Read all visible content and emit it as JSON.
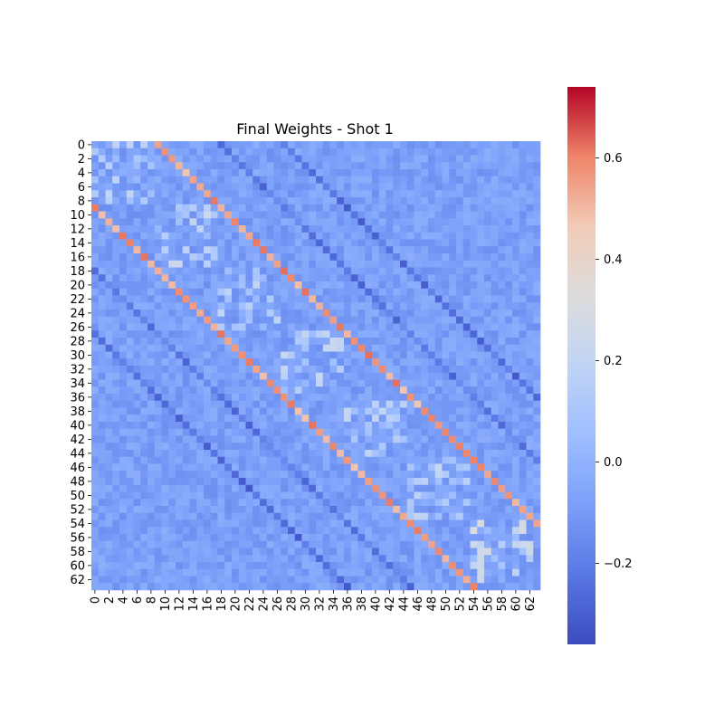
{
  "chart_data": {
    "type": "heatmap",
    "title": "Final Weights - Shot 1",
    "xlabel": "",
    "ylabel": "",
    "n": 64,
    "x_tick_labels": [
      "0",
      "2",
      "4",
      "6",
      "8",
      "10",
      "12",
      "14",
      "16",
      "18",
      "20",
      "22",
      "24",
      "26",
      "28",
      "30",
      "32",
      "34",
      "36",
      "38",
      "40",
      "42",
      "44",
      "46",
      "48",
      "50",
      "52",
      "54",
      "56",
      "58",
      "60",
      "62"
    ],
    "y_tick_labels": [
      "0",
      "2",
      "4",
      "6",
      "8",
      "10",
      "12",
      "14",
      "16",
      "18",
      "20",
      "22",
      "24",
      "26",
      "28",
      "30",
      "32",
      "34",
      "36",
      "38",
      "40",
      "42",
      "44",
      "46",
      "48",
      "50",
      "52",
      "54",
      "56",
      "58",
      "60",
      "62"
    ],
    "colorbar": {
      "colormap": "coolwarm",
      "vmin": -0.36,
      "vmax": 0.74,
      "tick_labels": [
        "0.6",
        "0.4",
        "0.2",
        "0.0",
        "−0.2"
      ],
      "tick_values": [
        0.6,
        0.4,
        0.2,
        0.0,
        -0.2
      ]
    },
    "pattern": {
      "baseline": -0.08,
      "offdiag_bands": [
        {
          "offset": 9,
          "value": 0.55
        },
        {
          "offset": -9,
          "value": 0.55
        },
        {
          "offset": 18,
          "value": -0.22
        },
        {
          "offset": -18,
          "value": -0.22
        },
        {
          "offset": 27,
          "value": -0.25
        },
        {
          "offset": -27,
          "value": -0.25
        }
      ],
      "diag_blocks": [
        {
          "start": 0,
          "end": 8,
          "value": 0.2
        },
        {
          "start": 9,
          "end": 17,
          "value": 0.25
        },
        {
          "start": 18,
          "end": 26,
          "value": 0.18
        },
        {
          "start": 27,
          "end": 35,
          "value": 0.22
        },
        {
          "start": 36,
          "end": 44,
          "value": 0.2
        },
        {
          "start": 45,
          "end": 53,
          "value": 0.22
        },
        {
          "start": 54,
          "end": 62,
          "value": 0.3
        }
      ]
    }
  }
}
